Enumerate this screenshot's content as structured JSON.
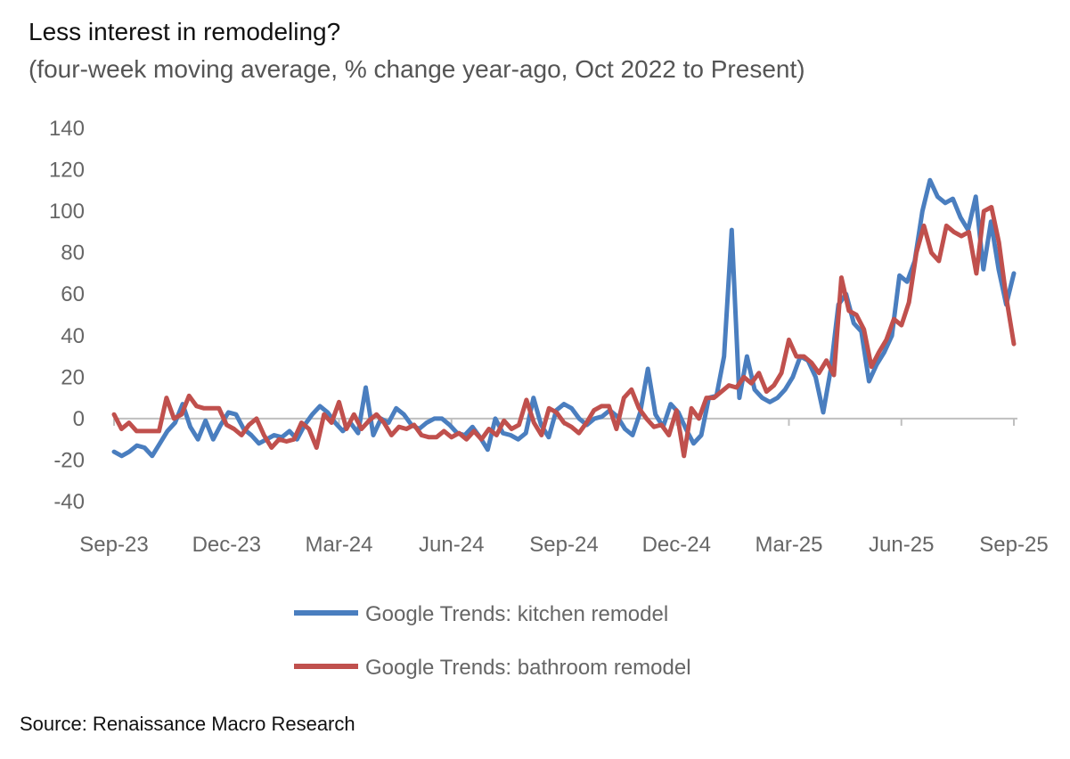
{
  "title": "Less interest in remodeling?",
  "subtitle": "(four-week moving average, % change year-ago, Oct 2022 to Present)",
  "source": "Source: Renaissance Macro Research",
  "colors": {
    "kitchen": "#4a7ebf",
    "bathroom": "#c0504d",
    "axis": "#bfbfbf"
  },
  "chart_data": {
    "type": "line",
    "title": "Less interest in remodeling?",
    "subtitle": "(four-week moving average, % change year-ago, Oct 2022 to Present)",
    "xlabel": "",
    "ylabel": "",
    "ylim": [
      -40,
      140
    ],
    "yticks": [
      -40,
      -20,
      0,
      20,
      40,
      60,
      80,
      100,
      120,
      140
    ],
    "x_tick_labels": [
      "Sep-23",
      "Dec-23",
      "Mar-24",
      "Jun-24",
      "Sep-24",
      "Dec-24",
      "Mar-25",
      "Jun-25",
      "Sep-25"
    ],
    "x_tick_weeks": [
      0,
      13,
      26,
      39,
      52,
      65,
      78,
      91,
      104
    ],
    "x_week_range": [
      0,
      104
    ],
    "legend_position": "bottom-center",
    "grid": false,
    "series": [
      {
        "name": "Google Trends: kitchen remodel",
        "color": "#4a7ebf",
        "values": [
          -16,
          -18,
          -16,
          -13,
          -14,
          -18,
          -12,
          -6,
          -2,
          7,
          -4,
          -10,
          -1,
          -10,
          -3,
          3,
          2,
          -5,
          -8,
          -12,
          -10,
          -8,
          -9,
          -6,
          -10,
          -3,
          2,
          6,
          3,
          -2,
          -6,
          -2,
          -7,
          15,
          -8,
          0,
          -2,
          5,
          2,
          -3,
          -5,
          -2,
          0,
          0,
          -3,
          -7,
          -8,
          -4,
          -9,
          -15,
          0,
          -7,
          -8,
          -10,
          -7,
          10,
          -3,
          -9,
          4,
          7,
          5,
          0,
          -3,
          0,
          1,
          4,
          1,
          -5,
          -8,
          3,
          24,
          2,
          -4,
          7,
          3,
          -5,
          -12,
          -8,
          10,
          11,
          30,
          91,
          10,
          30,
          14,
          10,
          8,
          10,
          14,
          20,
          30,
          28,
          20,
          3,
          24,
          55,
          60,
          46,
          42,
          18,
          26,
          32,
          40,
          69,
          66,
          76,
          100,
          115,
          107,
          104,
          106,
          97,
          91,
          107,
          72,
          95,
          72,
          55,
          70
        ]
      },
      {
        "name": "Google Trends: bathroom remodel",
        "color": "#c0504d",
        "values": [
          2,
          -5,
          -2,
          -6,
          -6,
          -6,
          -6,
          10,
          0,
          2,
          11,
          6,
          5,
          5,
          5,
          -3,
          -5,
          -8,
          -3,
          0,
          -8,
          -14,
          -10,
          -11,
          -10,
          -2,
          -5,
          -14,
          2,
          -2,
          8,
          -5,
          2,
          -5,
          -1,
          2,
          -2,
          -8,
          -4,
          -5,
          -3,
          -8,
          -9,
          -9,
          -6,
          -9,
          -7,
          -10,
          -6,
          -10,
          -5,
          -8,
          -1,
          -5,
          -3,
          9,
          -2,
          -8,
          5,
          3,
          -2,
          -4,
          -7,
          -2,
          4,
          6,
          6,
          -5,
          10,
          14,
          5,
          0,
          -4,
          -3,
          -8,
          4,
          -18,
          5,
          0,
          10,
          10,
          13,
          16,
          15,
          20,
          17,
          22,
          13,
          16,
          22,
          38,
          30,
          30,
          27,
          22,
          28,
          21,
          68,
          52,
          50,
          43,
          25,
          32,
          38,
          48,
          45,
          56,
          80,
          93,
          80,
          76,
          93,
          90,
          88,
          90,
          70,
          100,
          102,
          85,
          58,
          36
        ]
      }
    ]
  }
}
